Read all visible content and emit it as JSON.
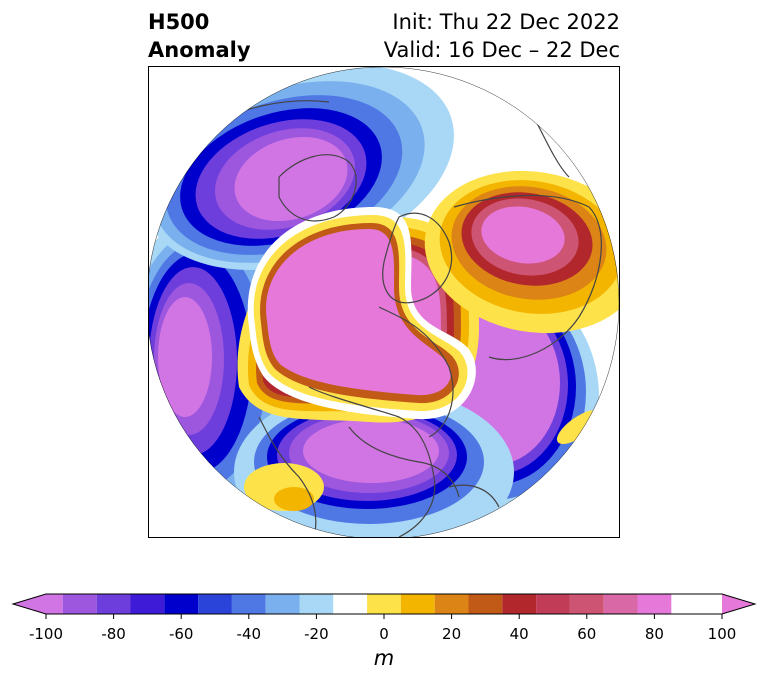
{
  "title": {
    "left_line1": "H500",
    "left_line2": "Anomaly",
    "right_line1": "Init: Thu 22 Dec 2022",
    "right_line2": "Valid: 16 Dec – 22 Dec"
  },
  "map": {
    "projection": "north-polar-stereographic",
    "field": "500 hPa geopotential height anomaly",
    "features": [
      {
        "name": "arctic-positive-anomaly",
        "sign": "positive",
        "peak_m": 100
      },
      {
        "name": "north-pacific-negative-anomaly",
        "sign": "negative",
        "peak_m": -100
      },
      {
        "name": "north-atlantic-negative-anomaly",
        "sign": "negative",
        "peak_m": -100
      },
      {
        "name": "north-america-negative-anomaly",
        "sign": "negative",
        "peak_m": -100
      },
      {
        "name": "europe-positive-anomaly",
        "sign": "positive",
        "peak_m": 70
      },
      {
        "name": "asia-negative-anomaly",
        "sign": "negative",
        "peak_m": -100
      }
    ]
  },
  "colorbar": {
    "unit": "m",
    "min": -100,
    "max": 100,
    "step": 10,
    "extend": "both",
    "tick_labels": [
      "-100",
      "-80",
      "-60",
      "-40",
      "-20",
      "0",
      "20",
      "40",
      "60",
      "80",
      "100"
    ],
    "colors": [
      "#d175e4",
      "#9c57de",
      "#6d3edc",
      "#3e1bd6",
      "#0000cc",
      "#2a43d9",
      "#4f78e5",
      "#7bb0ee",
      "#a9d8f6",
      "#ffffff",
      "#fee24a",
      "#f3b500",
      "#dc8416",
      "#c25a17",
      "#b1272b",
      "#c13c56",
      "#cd5473",
      "#d868a6",
      "#e578d8"
    ],
    "min_extend_color": "#d175e4",
    "max_extend_color": "#e578d8"
  }
}
